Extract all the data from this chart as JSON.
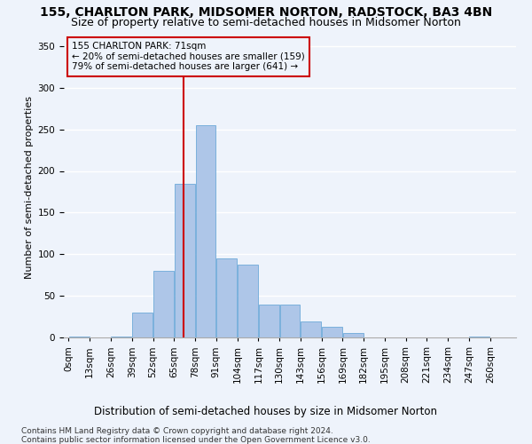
{
  "title1": "155, CHARLTON PARK, MIDSOMER NORTON, RADSTOCK, BA3 4BN",
  "title2": "Size of property relative to semi-detached houses in Midsomer Norton",
  "xlabel": "Distribution of semi-detached houses by size in Midsomer Norton",
  "ylabel": "Number of semi-detached properties",
  "footnote1": "Contains HM Land Registry data © Crown copyright and database right 2024.",
  "footnote2": "Contains public sector information licensed under the Open Government Licence v3.0.",
  "annotation_line1": "155 CHARLTON PARK: 71sqm",
  "annotation_line2": "← 20% of semi-detached houses are smaller (159)",
  "annotation_line3": "79% of semi-detached houses are larger (641) →",
  "property_size": 71,
  "bin_edges": [
    0,
    13,
    26,
    39,
    52,
    65,
    78,
    91,
    104,
    117,
    130,
    143,
    156,
    169,
    182,
    195,
    208,
    221,
    234,
    247,
    260
  ],
  "bar_heights": [
    1,
    0,
    1,
    30,
    80,
    185,
    255,
    95,
    88,
    40,
    40,
    19,
    13,
    5,
    0,
    0,
    0,
    0,
    0,
    1
  ],
  "bar_color": "#aec6e8",
  "bar_edge_color": "#5a9fd4",
  "vline_color": "#cc0000",
  "vline_x": 71,
  "annotation_box_color": "#cc0000",
  "background_color": "#eef3fb",
  "grid_color": "#ffffff",
  "ylim": [
    0,
    360
  ],
  "yticks": [
    0,
    50,
    100,
    150,
    200,
    250,
    300,
    350
  ],
  "title1_fontsize": 10,
  "title2_fontsize": 9,
  "xlabel_fontsize": 8.5,
  "ylabel_fontsize": 8,
  "tick_fontsize": 7.5,
  "annot_fontsize": 7.5,
  "footnote_fontsize": 6.5
}
